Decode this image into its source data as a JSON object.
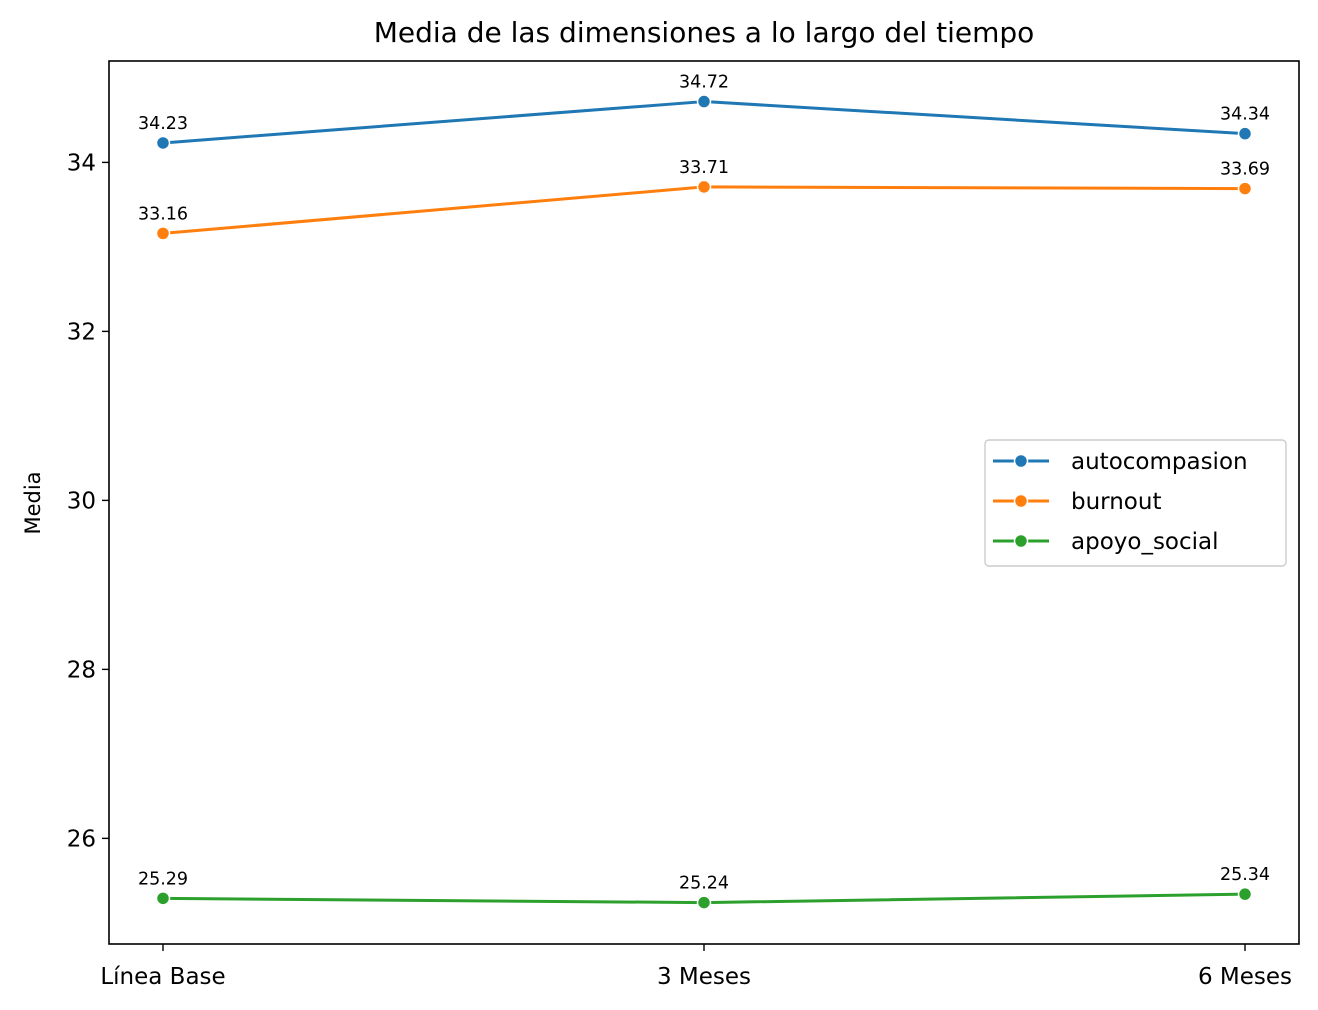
{
  "chart_data": {
    "type": "line",
    "title": "Media de las dimensiones a lo largo del tiempo",
    "xlabel": "",
    "ylabel": "Media",
    "categories": [
      "Línea Base",
      "3 Meses",
      "6 Meses"
    ],
    "ylim": [
      24.75,
      35.2
    ],
    "yticks": [
      26,
      28,
      30,
      32,
      34
    ],
    "grid": false,
    "legend_position": "center-right",
    "series": [
      {
        "name": "autocompasion",
        "color": "#1f77b4",
        "values": [
          34.23,
          34.72,
          34.34
        ],
        "labels": [
          "34.23",
          "34.72",
          "34.34"
        ]
      },
      {
        "name": "burnout",
        "color": "#ff7f0e",
        "values": [
          33.16,
          33.71,
          33.69
        ],
        "labels": [
          "33.16",
          "33.71",
          "33.69"
        ]
      },
      {
        "name": "apoyo_social",
        "color": "#2ca02c",
        "values": [
          25.29,
          25.24,
          25.34
        ],
        "labels": [
          "25.29",
          "25.24",
          "25.34"
        ]
      }
    ]
  }
}
